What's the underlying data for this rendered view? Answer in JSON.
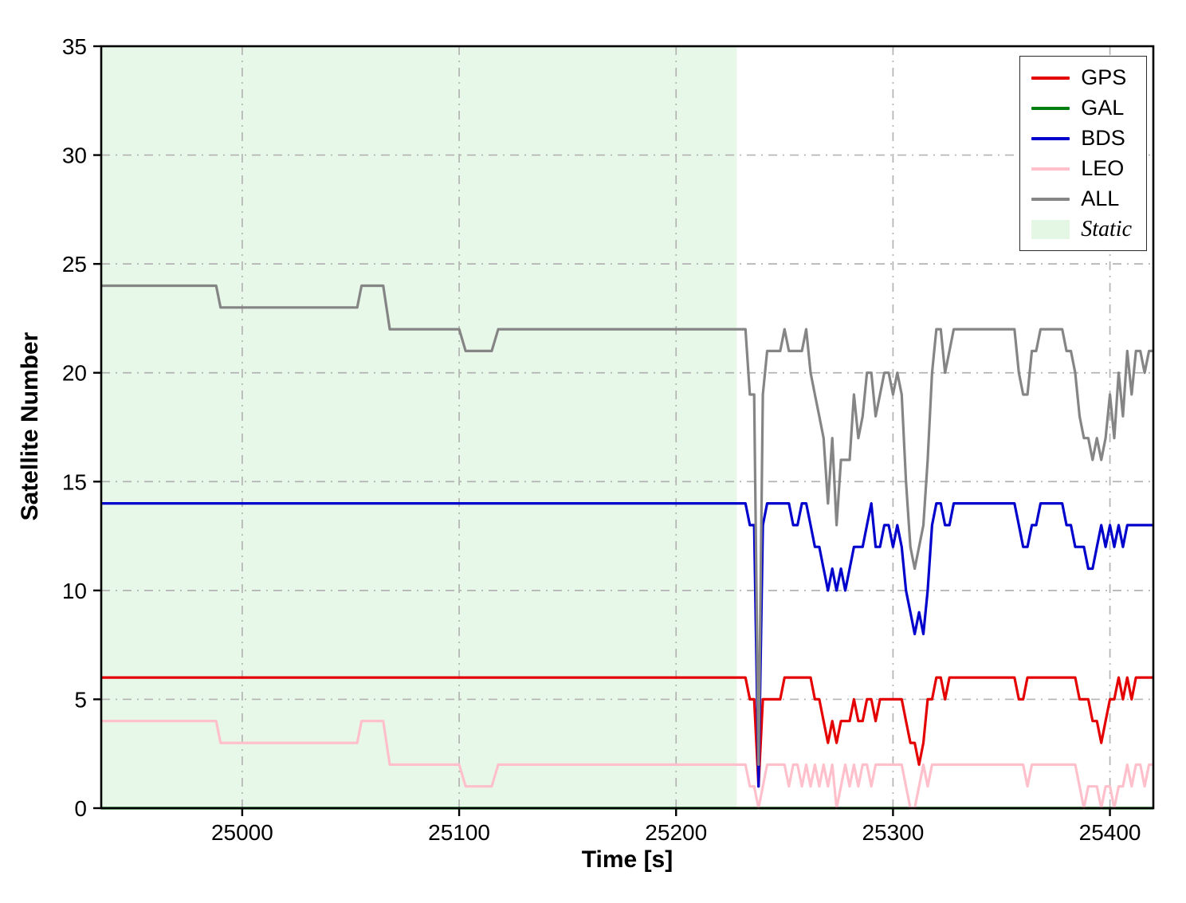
{
  "chart_data": {
    "type": "line",
    "title": "",
    "xlabel": "Time [s]",
    "ylabel": "Satellite Number",
    "xlim": [
      24935,
      25420
    ],
    "ylim": [
      0,
      35
    ],
    "x_ticks": [
      25000,
      25100,
      25200,
      25300,
      25400
    ],
    "y_ticks": [
      0,
      5,
      10,
      15,
      20,
      25,
      30,
      35
    ],
    "grid": "dash-dot",
    "grid_color": "#b3b3b3",
    "legend_position": "top-right",
    "static_region": {
      "label": "Static",
      "x_start": 24935,
      "x_end": 25228,
      "color": "#e7f7e8"
    },
    "series": [
      {
        "name": "GPS",
        "color": "#e50000",
        "width": 3.2,
        "points": [
          [
            24935,
            6
          ],
          [
            25232,
            6
          ],
          [
            25234,
            5
          ],
          [
            25236,
            5
          ],
          [
            25238,
            1
          ],
          [
            25240,
            5
          ],
          [
            25248,
            5
          ],
          [
            25250,
            6
          ],
          [
            25262,
            6
          ],
          [
            25264,
            5
          ],
          [
            25266,
            5
          ],
          [
            25268,
            4
          ],
          [
            25270,
            3
          ],
          [
            25272,
            4
          ],
          [
            25274,
            3
          ],
          [
            25276,
            4
          ],
          [
            25280,
            4
          ],
          [
            25282,
            5
          ],
          [
            25284,
            4
          ],
          [
            25286,
            4
          ],
          [
            25288,
            5
          ],
          [
            25290,
            5
          ],
          [
            25292,
            4
          ],
          [
            25294,
            5
          ],
          [
            25304,
            5
          ],
          [
            25306,
            4
          ],
          [
            25308,
            3
          ],
          [
            25310,
            3
          ],
          [
            25312,
            2
          ],
          [
            25314,
            3
          ],
          [
            25316,
            5
          ],
          [
            25318,
            5
          ],
          [
            25320,
            6
          ],
          [
            25322,
            6
          ],
          [
            25324,
            5
          ],
          [
            25326,
            6
          ],
          [
            25356,
            6
          ],
          [
            25358,
            5
          ],
          [
            25360,
            5
          ],
          [
            25362,
            6
          ],
          [
            25384,
            6
          ],
          [
            25386,
            5
          ],
          [
            25390,
            5
          ],
          [
            25392,
            4
          ],
          [
            25394,
            4
          ],
          [
            25396,
            3
          ],
          [
            25398,
            4
          ],
          [
            25400,
            5
          ],
          [
            25402,
            5
          ],
          [
            25404,
            6
          ],
          [
            25406,
            5
          ],
          [
            25408,
            6
          ],
          [
            25410,
            5
          ],
          [
            25412,
            6
          ],
          [
            25420,
            6
          ]
        ]
      },
      {
        "name": "GAL",
        "color": "#007f0e",
        "width": 3.2,
        "points": [
          [
            24935,
            0
          ],
          [
            25420,
            0
          ]
        ]
      },
      {
        "name": "BDS",
        "color": "#0000cd",
        "width": 3.2,
        "points": [
          [
            24935,
            14
          ],
          [
            25232,
            14
          ],
          [
            25234,
            13
          ],
          [
            25236,
            13
          ],
          [
            25238,
            1
          ],
          [
            25240,
            13
          ],
          [
            25242,
            14
          ],
          [
            25252,
            14
          ],
          [
            25254,
            13
          ],
          [
            25256,
            13
          ],
          [
            25258,
            14
          ],
          [
            25260,
            14
          ],
          [
            25262,
            13
          ],
          [
            25264,
            12
          ],
          [
            25266,
            12
          ],
          [
            25268,
            11
          ],
          [
            25270,
            10
          ],
          [
            25272,
            11
          ],
          [
            25274,
            10
          ],
          [
            25276,
            11
          ],
          [
            25278,
            10
          ],
          [
            25280,
            11
          ],
          [
            25282,
            12
          ],
          [
            25286,
            12
          ],
          [
            25288,
            13
          ],
          [
            25290,
            14
          ],
          [
            25292,
            12
          ],
          [
            25294,
            12
          ],
          [
            25296,
            13
          ],
          [
            25298,
            13
          ],
          [
            25300,
            12
          ],
          [
            25302,
            13
          ],
          [
            25304,
            12
          ],
          [
            25306,
            10
          ],
          [
            25308,
            9
          ],
          [
            25310,
            8
          ],
          [
            25312,
            9
          ],
          [
            25314,
            8
          ],
          [
            25316,
            10
          ],
          [
            25318,
            13
          ],
          [
            25320,
            14
          ],
          [
            25322,
            14
          ],
          [
            25324,
            13
          ],
          [
            25326,
            13
          ],
          [
            25328,
            14
          ],
          [
            25356,
            14
          ],
          [
            25358,
            13
          ],
          [
            25360,
            12
          ],
          [
            25362,
            12
          ],
          [
            25364,
            13
          ],
          [
            25366,
            13
          ],
          [
            25368,
            14
          ],
          [
            25378,
            14
          ],
          [
            25380,
            13
          ],
          [
            25382,
            13
          ],
          [
            25384,
            12
          ],
          [
            25388,
            12
          ],
          [
            25390,
            11
          ],
          [
            25392,
            11
          ],
          [
            25394,
            12
          ],
          [
            25396,
            13
          ],
          [
            25398,
            12
          ],
          [
            25400,
            13
          ],
          [
            25402,
            12
          ],
          [
            25404,
            13
          ],
          [
            25406,
            12
          ],
          [
            25408,
            13
          ],
          [
            25410,
            13
          ],
          [
            25420,
            13
          ]
        ]
      },
      {
        "name": "LEO",
        "color": "#ffc0cb",
        "width": 3.2,
        "points": [
          [
            24935,
            4
          ],
          [
            24988,
            4
          ],
          [
            24990,
            3
          ],
          [
            25053,
            3
          ],
          [
            25055,
            4
          ],
          [
            25065,
            4
          ],
          [
            25068,
            2
          ],
          [
            25100,
            2
          ],
          [
            25103,
            1
          ],
          [
            25115,
            1
          ],
          [
            25118,
            2
          ],
          [
            25232,
            2
          ],
          [
            25234,
            1
          ],
          [
            25236,
            1
          ],
          [
            25238,
            0
          ],
          [
            25240,
            1
          ],
          [
            25242,
            2
          ],
          [
            25250,
            2
          ],
          [
            25252,
            1
          ],
          [
            25254,
            2
          ],
          [
            25256,
            2
          ],
          [
            25258,
            1
          ],
          [
            25260,
            2
          ],
          [
            25262,
            1
          ],
          [
            25264,
            2
          ],
          [
            25266,
            1
          ],
          [
            25268,
            2
          ],
          [
            25270,
            1
          ],
          [
            25272,
            2
          ],
          [
            25274,
            0
          ],
          [
            25276,
            1
          ],
          [
            25278,
            2
          ],
          [
            25280,
            1
          ],
          [
            25282,
            2
          ],
          [
            25284,
            1
          ],
          [
            25286,
            2
          ],
          [
            25288,
            2
          ],
          [
            25290,
            1
          ],
          [
            25292,
            2
          ],
          [
            25304,
            2
          ],
          [
            25306,
            1
          ],
          [
            25308,
            0
          ],
          [
            25310,
            0
          ],
          [
            25312,
            1
          ],
          [
            25314,
            2
          ],
          [
            25316,
            1
          ],
          [
            25318,
            2
          ],
          [
            25358,
            2
          ],
          [
            25360,
            2
          ],
          [
            25362,
            1
          ],
          [
            25364,
            2
          ],
          [
            25384,
            2
          ],
          [
            25386,
            1
          ],
          [
            25388,
            0
          ],
          [
            25390,
            1
          ],
          [
            25394,
            1
          ],
          [
            25396,
            0
          ],
          [
            25398,
            1
          ],
          [
            25400,
            1
          ],
          [
            25402,
            0
          ],
          [
            25404,
            1
          ],
          [
            25406,
            1
          ],
          [
            25408,
            2
          ],
          [
            25410,
            1
          ],
          [
            25412,
            2
          ],
          [
            25414,
            2
          ],
          [
            25416,
            1
          ],
          [
            25418,
            2
          ],
          [
            25420,
            2
          ]
        ]
      },
      {
        "name": "ALL",
        "color": "#858585",
        "width": 3.2,
        "points": [
          [
            24935,
            24
          ],
          [
            24988,
            24
          ],
          [
            24990,
            23
          ],
          [
            25053,
            23
          ],
          [
            25055,
            24
          ],
          [
            25065,
            24
          ],
          [
            25068,
            22
          ],
          [
            25100,
            22
          ],
          [
            25103,
            21
          ],
          [
            25115,
            21
          ],
          [
            25118,
            22
          ],
          [
            25232,
            22
          ],
          [
            25234,
            19
          ],
          [
            25236,
            19
          ],
          [
            25238,
            2
          ],
          [
            25240,
            19
          ],
          [
            25242,
            21
          ],
          [
            25248,
            21
          ],
          [
            25250,
            22
          ],
          [
            25252,
            21
          ],
          [
            25254,
            21
          ],
          [
            25256,
            21
          ],
          [
            25258,
            21
          ],
          [
            25260,
            22
          ],
          [
            25262,
            20
          ],
          [
            25264,
            19
          ],
          [
            25266,
            18
          ],
          [
            25268,
            17
          ],
          [
            25270,
            14
          ],
          [
            25272,
            17
          ],
          [
            25274,
            13
          ],
          [
            25276,
            16
          ],
          [
            25278,
            16
          ],
          [
            25280,
            16
          ],
          [
            25282,
            19
          ],
          [
            25284,
            17
          ],
          [
            25286,
            18
          ],
          [
            25288,
            20
          ],
          [
            25290,
            20
          ],
          [
            25292,
            18
          ],
          [
            25294,
            19
          ],
          [
            25296,
            20
          ],
          [
            25298,
            20
          ],
          [
            25300,
            19
          ],
          [
            25302,
            20
          ],
          [
            25304,
            19
          ],
          [
            25306,
            15
          ],
          [
            25308,
            12
          ],
          [
            25310,
            11
          ],
          [
            25312,
            12
          ],
          [
            25314,
            13
          ],
          [
            25316,
            16
          ],
          [
            25318,
            20
          ],
          [
            25320,
            22
          ],
          [
            25322,
            22
          ],
          [
            25324,
            20
          ],
          [
            25326,
            21
          ],
          [
            25328,
            22
          ],
          [
            25356,
            22
          ],
          [
            25358,
            20
          ],
          [
            25360,
            19
          ],
          [
            25362,
            19
          ],
          [
            25364,
            21
          ],
          [
            25366,
            21
          ],
          [
            25368,
            22
          ],
          [
            25378,
            22
          ],
          [
            25380,
            21
          ],
          [
            25382,
            21
          ],
          [
            25384,
            20
          ],
          [
            25386,
            18
          ],
          [
            25388,
            17
          ],
          [
            25390,
            17
          ],
          [
            25392,
            16
          ],
          [
            25394,
            17
          ],
          [
            25396,
            16
          ],
          [
            25398,
            17
          ],
          [
            25400,
            19
          ],
          [
            25402,
            17
          ],
          [
            25404,
            20
          ],
          [
            25406,
            18
          ],
          [
            25408,
            21
          ],
          [
            25410,
            19
          ],
          [
            25412,
            21
          ],
          [
            25414,
            21
          ],
          [
            25416,
            20
          ],
          [
            25418,
            21
          ],
          [
            25420,
            21
          ]
        ]
      }
    ]
  },
  "legend": {
    "items": [
      {
        "label": "GPS",
        "color": "#e50000",
        "type": "line",
        "italic": false
      },
      {
        "label": "GAL",
        "color": "#007f0e",
        "type": "line",
        "italic": false
      },
      {
        "label": "BDS",
        "color": "#0000cd",
        "type": "line",
        "italic": false
      },
      {
        "label": "LEO",
        "color": "#ffc0cb",
        "type": "line",
        "italic": false
      },
      {
        "label": "ALL",
        "color": "#858585",
        "type": "line",
        "italic": false
      },
      {
        "label": "Static",
        "color": "#e4f6e4",
        "type": "patch",
        "italic": true
      }
    ]
  }
}
